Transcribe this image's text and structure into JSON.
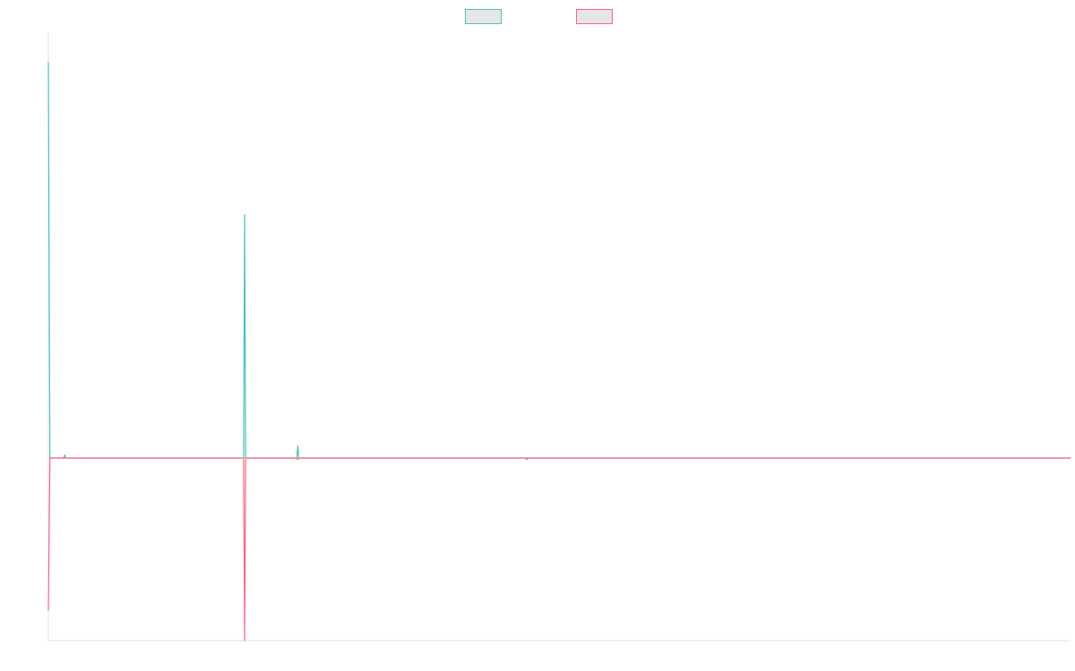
{
  "chart_data": {
    "type": "line",
    "title": "",
    "xlabel": "",
    "ylabel": "",
    "grid": false,
    "legend_position": "top-center",
    "xlim": [
      0,
      200
    ],
    "ylim": [
      -0.6,
      1.4
    ],
    "colors": {
      "legend_fill": "#e6e6e6",
      "axis": "#e3e3e3",
      "background": "#ffffff"
    },
    "series": [
      {
        "color": "#4bc0c0",
        "points": [
          [
            0,
            1.3
          ],
          [
            0.3,
            0
          ],
          [
            3,
            0
          ],
          [
            3.2,
            0.01
          ],
          [
            3.4,
            0
          ],
          [
            38.2,
            0
          ],
          [
            38.4,
            0.8
          ],
          [
            38.6,
            0
          ],
          [
            48.6,
            0
          ],
          [
            48.8,
            0.04
          ],
          [
            49.0,
            0
          ],
          [
            93.4,
            0
          ],
          [
            93.6,
            -0.005
          ],
          [
            93.8,
            0
          ],
          [
            200,
            0
          ]
        ]
      },
      {
        "color": "#ff6384",
        "points": [
          [
            0,
            -0.5
          ],
          [
            0.3,
            0
          ],
          [
            38.2,
            0
          ],
          [
            38.4,
            -0.6
          ],
          [
            38.6,
            0
          ],
          [
            48.6,
            0
          ],
          [
            48.8,
            -0.005
          ],
          [
            49.0,
            0
          ],
          [
            200,
            0
          ]
        ]
      }
    ]
  }
}
